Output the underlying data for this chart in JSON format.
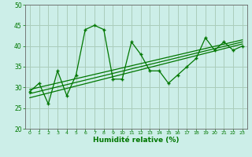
{
  "xlabel": "Humidité relative (%)",
  "bg_color": "#cceee8",
  "grid_color": "#aaccbb",
  "line_color": "#007700",
  "x_data": [
    0,
    1,
    2,
    3,
    4,
    5,
    6,
    7,
    8,
    9,
    10,
    11,
    12,
    13,
    14,
    15,
    16,
    17,
    18,
    19,
    20,
    21,
    22,
    23
  ],
  "y_main": [
    29,
    31,
    26,
    34,
    28,
    33,
    44,
    45,
    44,
    32,
    32,
    41,
    38,
    34,
    34,
    31,
    33,
    35,
    37,
    42,
    39,
    41,
    39,
    40
  ],
  "reg_lines": [
    {
      "x0": 0,
      "y0": 27.5,
      "x1": 23,
      "y1": 40.5
    },
    {
      "x0": 0,
      "y0": 28.5,
      "x1": 23,
      "y1": 41.0
    },
    {
      "x0": 0,
      "y0": 29.5,
      "x1": 23,
      "y1": 41.5
    }
  ],
  "ylim": [
    20,
    50
  ],
  "yticks": [
    20,
    25,
    30,
    35,
    40,
    45,
    50
  ],
  "xticks": [
    0,
    1,
    2,
    3,
    4,
    5,
    6,
    7,
    8,
    9,
    10,
    11,
    12,
    13,
    14,
    15,
    16,
    17,
    18,
    19,
    20,
    21,
    22,
    23
  ],
  "xlim": [
    -0.5,
    23.5
  ]
}
